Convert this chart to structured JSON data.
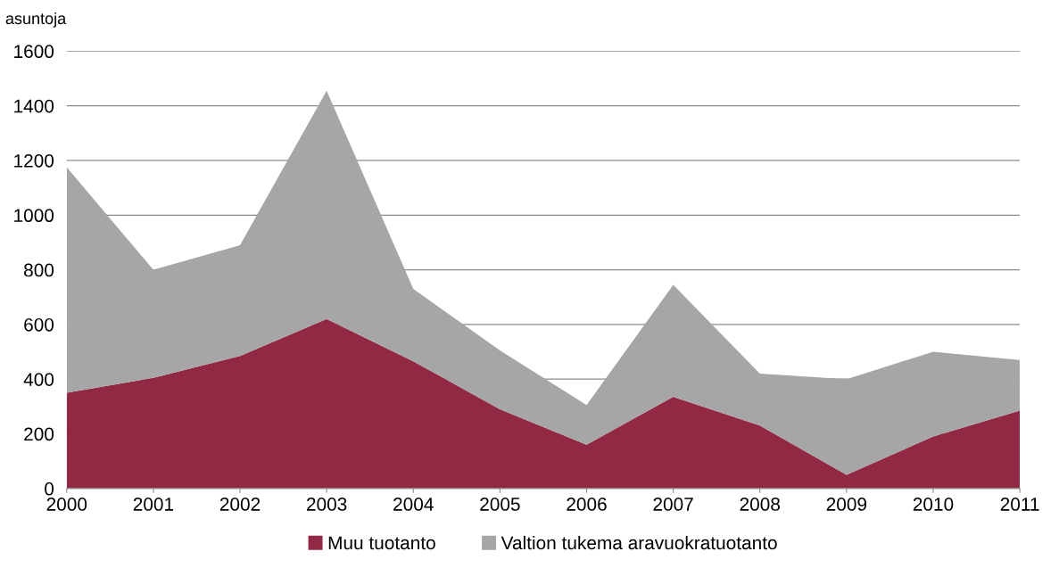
{
  "chart_data": {
    "type": "area",
    "stacked": true,
    "ylabel": "asuntoja",
    "categories": [
      "2000",
      "2001",
      "2002",
      "2003",
      "2004",
      "2005",
      "2006",
      "2007",
      "2008",
      "2009",
      "2010",
      "2011"
    ],
    "series": [
      {
        "name": "Muu tuotanto",
        "color": "#922944",
        "values": [
          350,
          405,
          485,
          620,
          465,
          290,
          160,
          335,
          230,
          50,
          190,
          285
        ]
      },
      {
        "name": "Valtion tukema aravuokratuotanto",
        "color": "#a6a6a6",
        "values": [
          825,
          395,
          405,
          835,
          265,
          215,
          145,
          410,
          190,
          350,
          310,
          185
        ]
      }
    ],
    "ylim": [
      0,
      1600
    ],
    "yticks": [
      0,
      200,
      400,
      600,
      800,
      1000,
      1200,
      1400,
      1600
    ],
    "grid": "y",
    "legend": "bottom"
  }
}
